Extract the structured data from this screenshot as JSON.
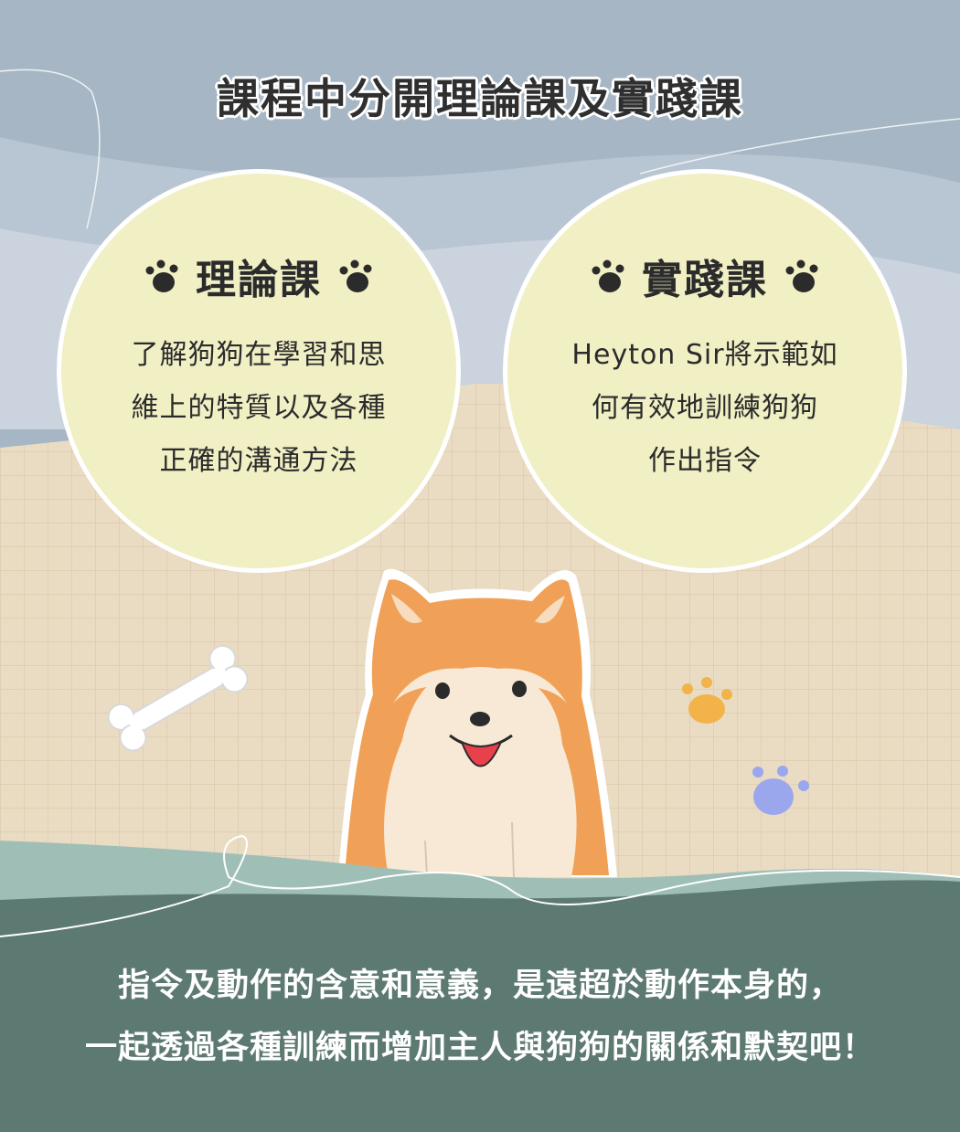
{
  "title": "課程中分開理論課及實踐課",
  "cards": [
    {
      "title": "理論課",
      "lines": [
        "了解狗狗在學習和思",
        "維上的特質以及各種",
        "正確的溝通方法"
      ]
    },
    {
      "title": "實踐課",
      "lines": [
        "Heyton Sir將示範如",
        "何有效地訓練狗狗",
        "作出指令"
      ]
    }
  ],
  "bottom": {
    "line1": "指令及動作的含意和意義，是遠超於動作本身的，",
    "line2": "一起透過各種訓練而增加主人與狗狗的關係和默契吧！"
  },
  "colors": {
    "sky": "#a6b6c5",
    "grid_bg": "#eadbc3",
    "card": "#f1efc4",
    "ground_light": "#9fbfb6",
    "ground_dark": "#5d7a72",
    "dog_orange": "#f0a157",
    "paw_orange": "#f2b34a",
    "paw_blue": "#9aa7ec"
  },
  "icons": {
    "paw": "paw-print-icon",
    "bone": "bone-icon",
    "dog": "shiba-dog-illustration"
  }
}
